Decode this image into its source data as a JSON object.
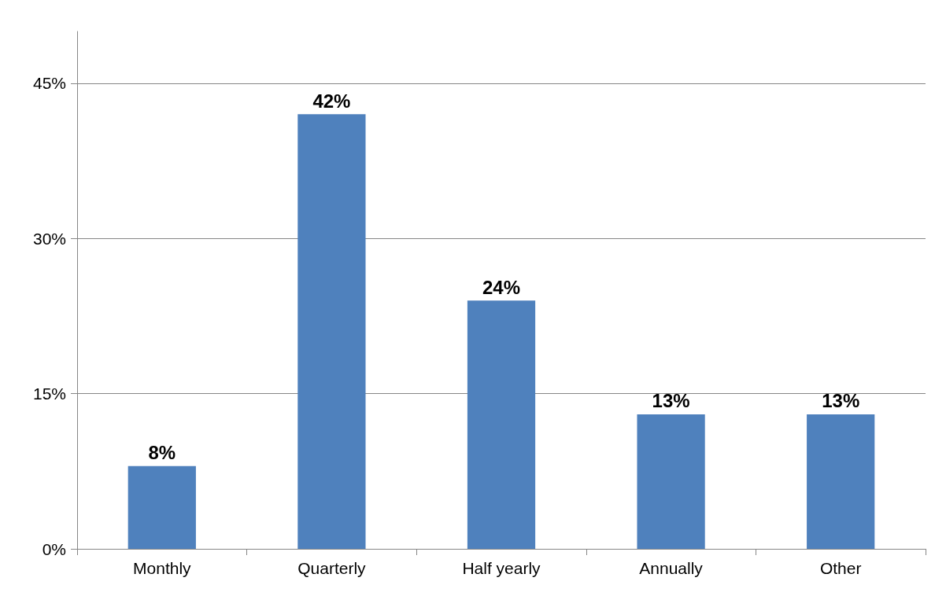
{
  "chart_data": {
    "type": "bar",
    "categories": [
      "Monthly",
      "Quarterly",
      "Half yearly",
      "Annually",
      "Other"
    ],
    "values": [
      8,
      42,
      24,
      13,
      13
    ],
    "value_labels": [
      "8%",
      "42%",
      "24%",
      "13%",
      "13%"
    ],
    "color": "#4f81bd",
    "ylim": [
      0,
      50
    ],
    "yticks": [
      {
        "value": 0,
        "label": "0%"
      },
      {
        "value": 15,
        "label": "15%"
      },
      {
        "value": 30,
        "label": "30%"
      },
      {
        "value": 45,
        "label": "45%"
      }
    ],
    "grid": "y"
  }
}
